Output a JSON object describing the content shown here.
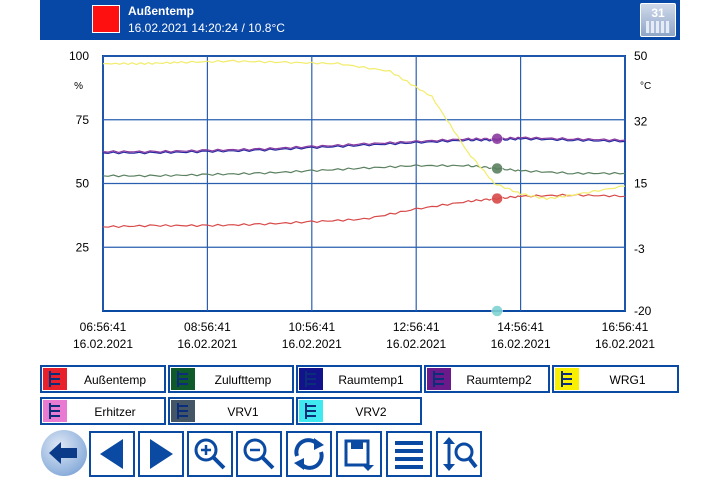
{
  "header": {
    "title": "Außentemp",
    "subtitle": "16.02.2021 14:20:24 / 10.8°C",
    "swatch_color": "#ff1010",
    "calendar_day": "31"
  },
  "chart_data": {
    "type": "line",
    "x_ticks": [
      {
        "time": "06:56:41",
        "date": "16.02.2021"
      },
      {
        "time": "08:56:41",
        "date": "16.02.2021"
      },
      {
        "time": "10:56:41",
        "date": "16.02.2021"
      },
      {
        "time": "12:56:41",
        "date": "16.02.2021"
      },
      {
        "time": "14:56:41",
        "date": "16.02.2021"
      },
      {
        "time": "16:56:41",
        "date": "16.02.2021"
      }
    ],
    "xlim_hours": [
      0,
      10
    ],
    "left_axis": {
      "unit": "%",
      "ticks": [
        100,
        75,
        50,
        25
      ],
      "ylim": [
        0,
        100
      ]
    },
    "right_axis": {
      "unit": "°C",
      "ticks": [
        50,
        32,
        15,
        -3,
        -20
      ],
      "ylim": [
        -20,
        50
      ]
    },
    "series": [
      {
        "name": "Außentemp",
        "color": "#d84a4a",
        "axis": "left",
        "x": [
          0,
          1,
          2,
          3,
          4,
          5,
          6,
          7,
          7.5,
          8,
          9,
          10
        ],
        "y": [
          33,
          33.5,
          33.5,
          34,
          35,
          36,
          40,
          43,
          44,
          45,
          45.5,
          45
        ],
        "marker_x": 7.55
      },
      {
        "name": "Zulufttemp",
        "color": "#5a8060",
        "axis": "left",
        "x": [
          0,
          1,
          2,
          3,
          4,
          5,
          6,
          7,
          7.5,
          8,
          9,
          10
        ],
        "y": [
          53,
          53,
          53.5,
          54,
          55,
          56,
          57,
          57,
          56,
          55,
          54,
          54
        ],
        "marker_x": 7.55
      },
      {
        "name": "Raumtemp1",
        "color": "#2a2aa0",
        "axis": "left",
        "x": [
          0,
          1,
          2,
          3,
          4,
          5,
          6,
          7,
          7.5,
          8,
          9,
          10
        ],
        "y": [
          62,
          62,
          62.5,
          63,
          64,
          65,
          66,
          67,
          67,
          67.5,
          67,
          66.5
        ],
        "marker_x": null
      },
      {
        "name": "Raumtemp2",
        "color": "#8a3aa0",
        "axis": "left",
        "x": [
          0,
          1,
          2,
          3,
          4,
          5,
          6,
          7,
          7.5,
          8,
          9,
          10
        ],
        "y": [
          62.5,
          62.5,
          63,
          63.5,
          64.5,
          65.5,
          66.5,
          67.5,
          67.5,
          68,
          67.5,
          67
        ],
        "marker_x": 7.55
      },
      {
        "name": "WRG1",
        "color": "#f2ec6a",
        "axis": "left",
        "x": [
          0,
          0.8,
          1.5,
          2.5,
          3.5,
          4.5,
          5.5,
          6.3,
          7,
          7.5,
          8,
          8.5,
          9,
          10
        ],
        "y": [
          97,
          97,
          97.5,
          98,
          97.5,
          97,
          94,
          84,
          62,
          50,
          46,
          44,
          45.5,
          49
        ],
        "marker_x": null
      },
      {
        "name": "VRV2",
        "color": "#7fd2d2",
        "axis": "left",
        "x": [
          7.55
        ],
        "y": [
          0
        ],
        "marker_x": 7.55
      }
    ]
  },
  "legend": [
    {
      "label": "Außentemp",
      "color": "#e8202c"
    },
    {
      "label": "Zulufttemp",
      "color": "#0f5a2a"
    },
    {
      "label": "Raumtemp1",
      "color": "#12128a"
    },
    {
      "label": "Raumtemp2",
      "color": "#6a1a8a"
    },
    {
      "label": "WRG1",
      "color": "#f8f000"
    },
    {
      "label": "Erhitzer",
      "color": "#e87ad2"
    },
    {
      "label": "VRV1",
      "color": "#445566"
    },
    {
      "label": "VRV2",
      "color": "#40e8f0"
    }
  ],
  "toolbar": {
    "icons": [
      "back-arrow-icon",
      "previous-icon",
      "next-icon",
      "zoom-in-icon",
      "zoom-out-icon",
      "refresh-icon",
      "save-export-icon",
      "list-icon",
      "vertical-zoom-icon"
    ]
  }
}
